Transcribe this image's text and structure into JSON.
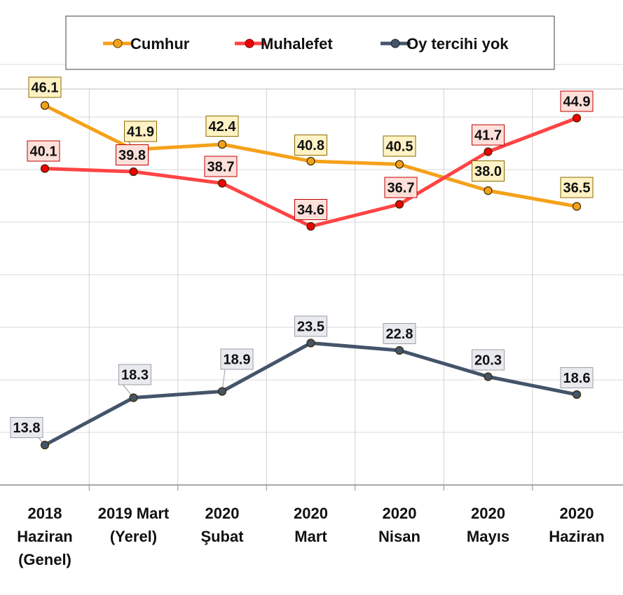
{
  "chart_data": {
    "type": "line",
    "categories": [
      [
        "2018",
        "Haziran",
        "(Genel)"
      ],
      [
        "2019 Mart",
        "(Yerel)"
      ],
      [
        "2020",
        "Şubat"
      ],
      [
        "2020",
        "Mart"
      ],
      [
        "2020",
        "Nisan"
      ],
      [
        "2020",
        "Mayıs"
      ],
      [
        "2020",
        "Haziran"
      ]
    ],
    "series": [
      {
        "name": "Cumhur",
        "values": [
          46.1,
          41.9,
          42.4,
          40.8,
          40.5,
          38.0,
          36.5
        ],
        "value_labels": [
          "46.1",
          "41.9",
          "42.4",
          "40.8",
          "40.5",
          "38.0",
          "36.5"
        ],
        "color": "#F4A11A",
        "marker_color": "#F4A11A",
        "label_fill": "#FFF2C5",
        "label_border": "#8A6A00"
      },
      {
        "name": "Muhalefet",
        "values": [
          40.1,
          39.8,
          38.7,
          34.6,
          36.7,
          41.7,
          44.9
        ],
        "value_labels": [
          "40.1",
          "39.8",
          "38.7",
          "34.6",
          "36.7",
          "41.7",
          "44.9"
        ],
        "color": "#FF4444",
        "marker_color": "#EE0000",
        "label_fill": "#FDE0DA",
        "label_border": "#C00000"
      },
      {
        "name": "Oy tercihi yok",
        "values": [
          13.8,
          18.3,
          18.9,
          23.5,
          22.8,
          20.3,
          18.6
        ],
        "value_labels": [
          "13.8",
          "18.3",
          "18.9",
          "23.5",
          "22.8",
          "20.3",
          "18.6"
        ],
        "color": "#44546A",
        "marker_color": "#44546A",
        "label_fill": "#E8EAEE",
        "label_border": "#9A9FA8"
      }
    ],
    "title": "",
    "xlabel": "",
    "ylabel": "",
    "ylim": [
      10,
      52.5
    ],
    "y_gridlines": [
      15,
      20,
      25,
      30,
      35,
      40,
      45,
      50
    ],
    "y_tick_labels_shown": false,
    "grid": true,
    "legend_position": "top"
  }
}
